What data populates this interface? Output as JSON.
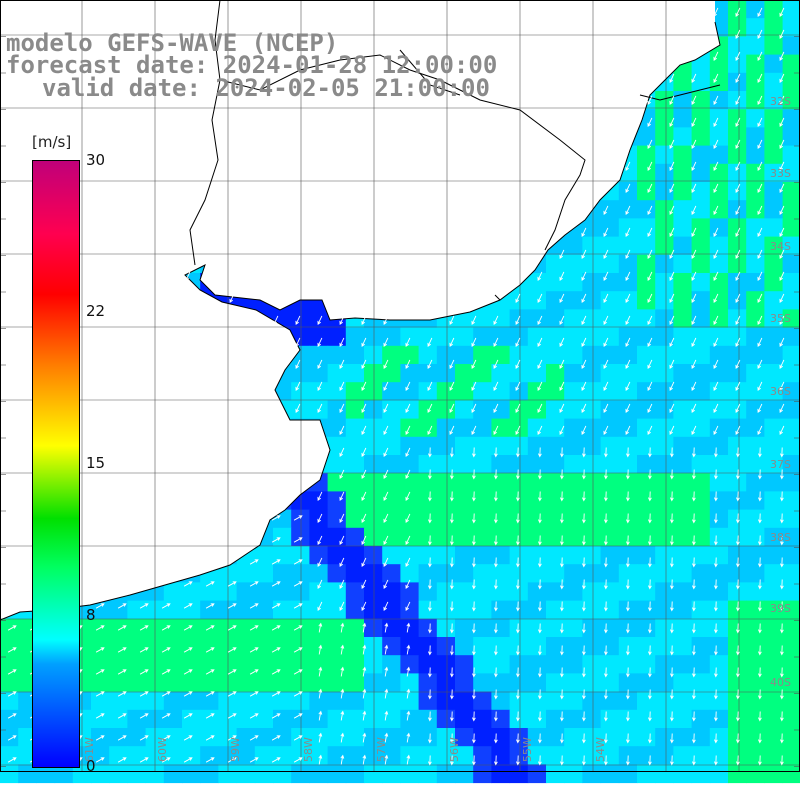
{
  "title": {
    "model_line": "modelo GEFS-WAVE (NCEP)",
    "forecast_line": "forecast date: 2024-01-28 12:00:00",
    "valid_line": "valid date: 2024-02-05 21:00:00"
  },
  "legend": {
    "unit": "[m/s]",
    "ticks": [
      "30",
      "22",
      "15",
      "8",
      "0"
    ],
    "colors": [
      "#0000ff",
      "#00a0ff",
      "#00ffff",
      "#00ff60",
      "#00e000",
      "#ffff00",
      "#ff8000",
      "#ff0000",
      "#c0007a"
    ]
  },
  "map": {
    "lat_labels": [
      "32S",
      "33S",
      "34S",
      "35S",
      "36S",
      "37S",
      "38S",
      "39S",
      "40S"
    ],
    "lon_labels": [
      "61W",
      "60W",
      "59W",
      "58W",
      "57W",
      "56W",
      "55W",
      "54W"
    ],
    "wind_colors": {
      "light_blue": "#00c8ff",
      "cyan": "#00e8ff",
      "green": "#00ff80",
      "blue": "#1040ff",
      "dark_blue": "#0020ff"
    }
  }
}
